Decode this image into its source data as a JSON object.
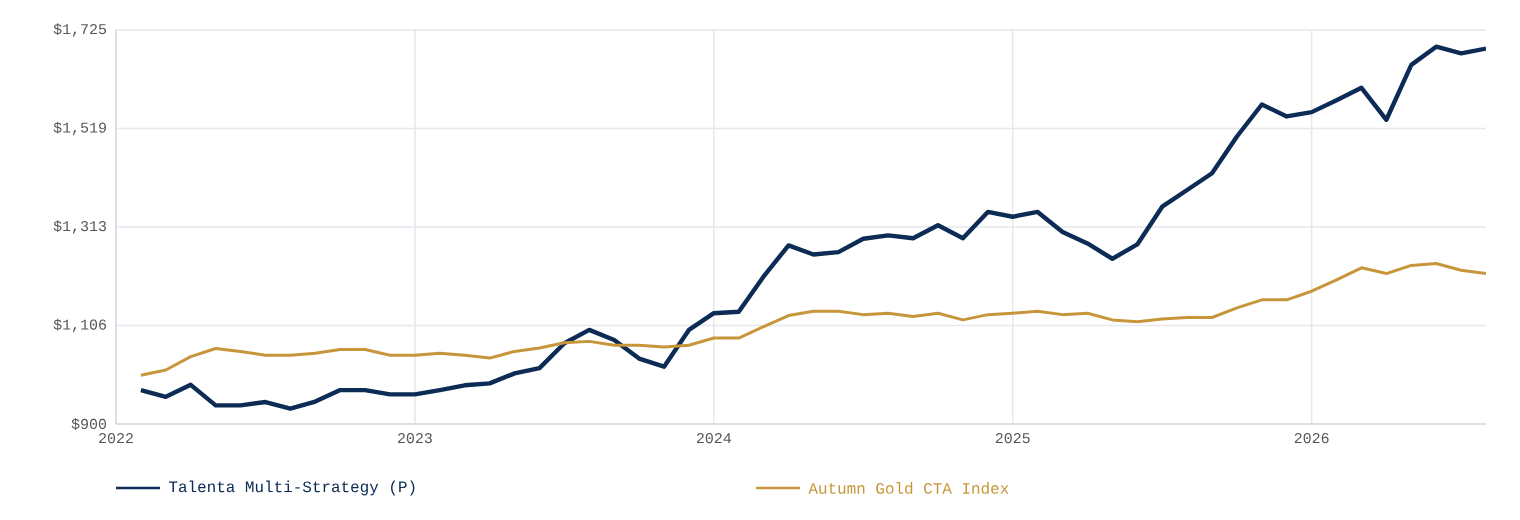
{
  "chart_data": {
    "type": "line",
    "x": [
      "2022-02",
      "2022-03",
      "2022-04",
      "2022-05",
      "2022-06",
      "2022-07",
      "2022-08",
      "2022-09",
      "2022-10",
      "2022-11",
      "2022-12",
      "2023-01",
      "2023-02",
      "2023-03",
      "2023-04",
      "2023-05",
      "2023-06",
      "2023-07",
      "2023-08",
      "2023-09",
      "2023-10",
      "2023-11",
      "2023-12",
      "2024-01",
      "2024-02",
      "2024-03",
      "2024-04",
      "2024-05",
      "2024-06",
      "2024-07",
      "2024-08",
      "2024-09",
      "2024-10",
      "2024-11",
      "2024-12",
      "2025-01",
      "2025-02",
      "2025-03",
      "2025-04",
      "2025-05",
      "2025-06",
      "2025-07",
      "2025-08",
      "2025-09",
      "2025-10",
      "2025-11",
      "2025-12",
      "2026-01",
      "2026-02",
      "2026-03",
      "2026-04",
      "2026-05",
      "2026-06",
      "2026-07",
      "2026-08"
    ],
    "series": [
      {
        "name": "Talenta Multi-Strategy (P)",
        "color": "#0c2c56",
        "values": [
          971,
          957,
          982,
          939,
          939,
          946,
          932,
          947,
          971,
          971,
          962,
          962,
          971,
          981,
          985,
          1006,
          1017,
          1069,
          1097,
          1076,
          1037,
          1020,
          1097,
          1132,
          1135,
          1209,
          1274,
          1255,
          1260,
          1288,
          1295,
          1289,
          1316,
          1289,
          1344,
          1334,
          1344,
          1302,
          1278,
          1246,
          1276,
          1355,
          1390,
          1425,
          1502,
          1569,
          1544,
          1553,
          1578,
          1604,
          1537,
          1652,
          1690,
          1676,
          1686
        ]
      },
      {
        "name": "Autumn Gold CTA Index",
        "color": "#c8963a",
        "values": [
          1002,
          1013,
          1041,
          1058,
          1052,
          1044,
          1044,
          1048,
          1056,
          1056,
          1044,
          1044,
          1048,
          1044,
          1038,
          1052,
          1059,
          1070,
          1073,
          1065,
          1065,
          1061,
          1065,
          1080,
          1080,
          1104,
          1127,
          1136,
          1136,
          1129,
          1132,
          1125,
          1132,
          1118,
          1129,
          1132,
          1136,
          1129,
          1132,
          1118,
          1114,
          1120,
          1123,
          1123,
          1143,
          1160,
          1160,
          1178,
          1202,
          1227,
          1215,
          1232,
          1236,
          1222,
          1215
        ]
      }
    ],
    "xlim": [
      "2022-01",
      "2026-08"
    ],
    "xticks": [
      {
        "value": "2022",
        "label": "2022"
      },
      {
        "value": "2023",
        "label": "2023"
      },
      {
        "value": "2024",
        "label": "2024"
      },
      {
        "value": "2025",
        "label": "2025"
      },
      {
        "value": "2026",
        "label": "2026"
      }
    ],
    "ylim": [
      900,
      1725
    ],
    "yticks": [
      {
        "value": 900,
        "label": "$900"
      },
      {
        "value": 1106.25,
        "label": "$1,106"
      },
      {
        "value": 1312.5,
        "label": "$1,313"
      },
      {
        "value": 1518.75,
        "label": "$1,519"
      },
      {
        "value": 1725,
        "label": "$1,725"
      }
    ],
    "grid": true,
    "legend": "bottom"
  }
}
